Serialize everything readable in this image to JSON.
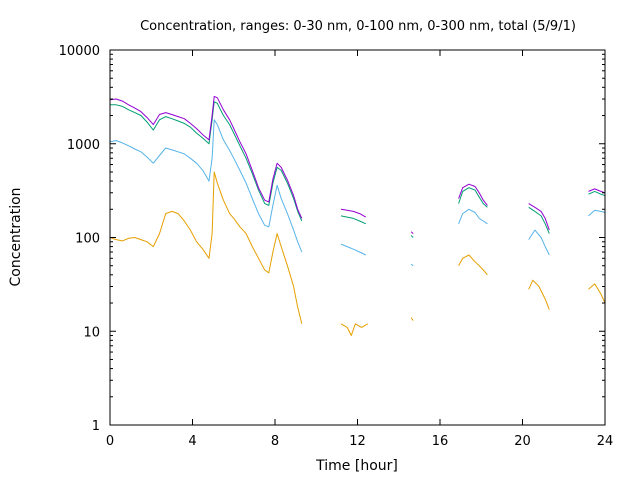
{
  "chart_data": {
    "type": "line",
    "title": "Concentration, ranges: 0-30 nm, 0-100 nm, 0-300 nm, total (5/9/1)",
    "xlabel": "Time [hour]",
    "ylabel": "Concentration",
    "xlim": [
      0,
      24
    ],
    "ylim": [
      1,
      10000
    ],
    "yscale": "log",
    "grid": false,
    "xticks": [
      0,
      4,
      8,
      12,
      16,
      20,
      24
    ],
    "xtick_labels": [
      "0",
      "4",
      "8",
      "12",
      "16",
      "20",
      "24"
    ],
    "yticks": [
      1,
      10,
      100,
      1000,
      10000
    ],
    "ytick_labels": [
      "1",
      "10",
      "100",
      "1000",
      "10000"
    ],
    "series": [
      {
        "color": "#e69f00",
        "segments": [
          [
            [
              0.0,
              100
            ],
            [
              0.3,
              95
            ],
            [
              0.6,
              92
            ],
            [
              0.9,
              98
            ],
            [
              1.2,
              100
            ],
            [
              1.5,
              95
            ],
            [
              1.8,
              90
            ],
            [
              2.1,
              80
            ],
            [
              2.4,
              110
            ],
            [
              2.7,
              180
            ],
            [
              3.0,
              190
            ],
            [
              3.3,
              180
            ],
            [
              3.6,
              150
            ],
            [
              3.9,
              120
            ],
            [
              4.2,
              90
            ],
            [
              4.5,
              75
            ],
            [
              4.8,
              60
            ],
            [
              4.95,
              110
            ],
            [
              5.05,
              500
            ],
            [
              5.2,
              380
            ],
            [
              5.5,
              250
            ],
            [
              5.8,
              180
            ],
            [
              6.0,
              160
            ],
            [
              6.3,
              130
            ],
            [
              6.6,
              110
            ],
            [
              6.9,
              80
            ],
            [
              7.2,
              60
            ],
            [
              7.5,
              45
            ],
            [
              7.7,
              42
            ],
            [
              7.9,
              70
            ],
            [
              8.1,
              110
            ],
            [
              8.3,
              80
            ],
            [
              8.6,
              50
            ],
            [
              8.9,
              30
            ],
            [
              9.1,
              18
            ],
            [
              9.3,
              12
            ]
          ],
          [
            [
              11.2,
              12
            ],
            [
              11.5,
              11
            ],
            [
              11.7,
              9
            ],
            [
              11.9,
              12
            ],
            [
              12.2,
              11
            ],
            [
              12.5,
              12
            ]
          ],
          [
            [
              14.6,
              14
            ],
            [
              14.7,
              13
            ]
          ],
          [
            [
              16.9,
              50
            ],
            [
              17.1,
              60
            ],
            [
              17.4,
              65
            ],
            [
              17.7,
              55
            ],
            [
              17.9,
              50
            ],
            [
              18.1,
              45
            ],
            [
              18.3,
              40
            ]
          ],
          [
            [
              20.3,
              28
            ],
            [
              20.5,
              35
            ],
            [
              20.8,
              30
            ],
            [
              21.1,
              22
            ],
            [
              21.3,
              17
            ]
          ],
          [
            [
              23.2,
              28
            ],
            [
              23.5,
              32
            ],
            [
              23.8,
              25
            ],
            [
              24.0,
              20
            ]
          ]
        ]
      },
      {
        "color": "#56b4e9",
        "segments": [
          [
            [
              0.0,
              1050
            ],
            [
              0.3,
              1080
            ],
            [
              0.6,
              1020
            ],
            [
              0.9,
              950
            ],
            [
              1.2,
              880
            ],
            [
              1.5,
              820
            ],
            [
              1.8,
              720
            ],
            [
              2.1,
              620
            ],
            [
              2.4,
              750
            ],
            [
              2.7,
              900
            ],
            [
              3.0,
              860
            ],
            [
              3.3,
              820
            ],
            [
              3.6,
              780
            ],
            [
              3.9,
              700
            ],
            [
              4.2,
              620
            ],
            [
              4.5,
              520
            ],
            [
              4.8,
              400
            ],
            [
              4.95,
              700
            ],
            [
              5.05,
              1800
            ],
            [
              5.2,
              1600
            ],
            [
              5.5,
              1100
            ],
            [
              5.8,
              850
            ],
            [
              6.0,
              700
            ],
            [
              6.3,
              520
            ],
            [
              6.6,
              380
            ],
            [
              6.9,
              260
            ],
            [
              7.2,
              180
            ],
            [
              7.5,
              135
            ],
            [
              7.7,
              130
            ],
            [
              7.9,
              220
            ],
            [
              8.1,
              360
            ],
            [
              8.3,
              260
            ],
            [
              8.6,
              180
            ],
            [
              8.9,
              120
            ],
            [
              9.1,
              90
            ],
            [
              9.3,
              70
            ]
          ],
          [
            [
              11.2,
              85
            ],
            [
              11.5,
              80
            ],
            [
              11.8,
              75
            ],
            [
              12.1,
              70
            ],
            [
              12.4,
              65
            ]
          ],
          [
            [
              14.6,
              52
            ],
            [
              14.7,
              50
            ]
          ],
          [
            [
              16.9,
              140
            ],
            [
              17.1,
              180
            ],
            [
              17.4,
              200
            ],
            [
              17.7,
              185
            ],
            [
              17.9,
              160
            ],
            [
              18.1,
              150
            ],
            [
              18.3,
              140
            ]
          ],
          [
            [
              20.3,
              95
            ],
            [
              20.6,
              120
            ],
            [
              20.9,
              100
            ],
            [
              21.1,
              80
            ],
            [
              21.3,
              65
            ]
          ],
          [
            [
              23.2,
              170
            ],
            [
              23.5,
              195
            ],
            [
              23.8,
              190
            ],
            [
              24.0,
              185
            ]
          ]
        ]
      },
      {
        "color": "#009e73",
        "segments": [
          [
            [
              0.0,
              2600
            ],
            [
              0.3,
              2600
            ],
            [
              0.6,
              2500
            ],
            [
              0.9,
              2300
            ],
            [
              1.2,
              2150
            ],
            [
              1.5,
              2000
            ],
            [
              1.8,
              1700
            ],
            [
              2.1,
              1400
            ],
            [
              2.4,
              1800
            ],
            [
              2.7,
              1950
            ],
            [
              3.0,
              1850
            ],
            [
              3.3,
              1750
            ],
            [
              3.6,
              1650
            ],
            [
              3.9,
              1500
            ],
            [
              4.2,
              1300
            ],
            [
              4.5,
              1150
            ],
            [
              4.8,
              1000
            ],
            [
              4.95,
              1800
            ],
            [
              5.05,
              2800
            ],
            [
              5.2,
              2700
            ],
            [
              5.5,
              2000
            ],
            [
              5.8,
              1600
            ],
            [
              6.0,
              1300
            ],
            [
              6.3,
              950
            ],
            [
              6.6,
              700
            ],
            [
              6.9,
              480
            ],
            [
              7.2,
              320
            ],
            [
              7.5,
              230
            ],
            [
              7.7,
              220
            ],
            [
              7.9,
              380
            ],
            [
              8.1,
              560
            ],
            [
              8.3,
              520
            ],
            [
              8.6,
              380
            ],
            [
              8.9,
              260
            ],
            [
              9.1,
              190
            ],
            [
              9.3,
              150
            ]
          ],
          [
            [
              11.2,
              170
            ],
            [
              11.5,
              165
            ],
            [
              11.8,
              160
            ],
            [
              12.1,
              150
            ],
            [
              12.4,
              140
            ]
          ],
          [
            [
              14.6,
              105
            ],
            [
              14.7,
              100
            ]
          ],
          [
            [
              16.9,
              230
            ],
            [
              17.1,
              310
            ],
            [
              17.4,
              340
            ],
            [
              17.7,
              320
            ],
            [
              17.9,
              270
            ],
            [
              18.1,
              230
            ],
            [
              18.3,
              210
            ]
          ],
          [
            [
              20.3,
              210
            ],
            [
              20.6,
              190
            ],
            [
              20.9,
              170
            ],
            [
              21.1,
              140
            ],
            [
              21.3,
              110
            ]
          ],
          [
            [
              23.2,
              290
            ],
            [
              23.5,
              310
            ],
            [
              23.8,
              290
            ],
            [
              24.0,
              280
            ]
          ]
        ]
      },
      {
        "color": "#9400d3",
        "segments": [
          [
            [
              0.0,
              2950
            ],
            [
              0.3,
              3000
            ],
            [
              0.6,
              2850
            ],
            [
              0.9,
              2600
            ],
            [
              1.2,
              2400
            ],
            [
              1.5,
              2200
            ],
            [
              1.8,
              1900
            ],
            [
              2.1,
              1600
            ],
            [
              2.4,
              2050
            ],
            [
              2.7,
              2150
            ],
            [
              3.0,
              2050
            ],
            [
              3.3,
              1950
            ],
            [
              3.6,
              1850
            ],
            [
              3.9,
              1650
            ],
            [
              4.2,
              1450
            ],
            [
              4.5,
              1250
            ],
            [
              4.8,
              1100
            ],
            [
              4.95,
              2000
            ],
            [
              5.05,
              3200
            ],
            [
              5.2,
              3100
            ],
            [
              5.5,
              2300
            ],
            [
              5.8,
              1800
            ],
            [
              6.0,
              1450
            ],
            [
              6.3,
              1050
            ],
            [
              6.6,
              780
            ],
            [
              6.9,
              520
            ],
            [
              7.2,
              340
            ],
            [
              7.5,
              250
            ],
            [
              7.7,
              240
            ],
            [
              7.9,
              420
            ],
            [
              8.1,
              620
            ],
            [
              8.3,
              560
            ],
            [
              8.6,
              410
            ],
            [
              8.9,
              280
            ],
            [
              9.1,
              200
            ],
            [
              9.3,
              160
            ]
          ],
          [
            [
              11.2,
              200
            ],
            [
              11.5,
              195
            ],
            [
              11.8,
              190
            ],
            [
              12.1,
              180
            ],
            [
              12.4,
              165
            ]
          ],
          [
            [
              14.6,
              115
            ],
            [
              14.7,
              110
            ]
          ],
          [
            [
              16.9,
              260
            ],
            [
              17.1,
              340
            ],
            [
              17.4,
              370
            ],
            [
              17.7,
              350
            ],
            [
              17.9,
              300
            ],
            [
              18.1,
              250
            ],
            [
              18.3,
              220
            ]
          ],
          [
            [
              20.3,
              230
            ],
            [
              20.6,
              210
            ],
            [
              20.9,
              190
            ],
            [
              21.1,
              160
            ],
            [
              21.3,
              120
            ]
          ],
          [
            [
              23.2,
              310
            ],
            [
              23.5,
              330
            ],
            [
              23.8,
              310
            ],
            [
              24.0,
              300
            ]
          ]
        ]
      }
    ]
  }
}
